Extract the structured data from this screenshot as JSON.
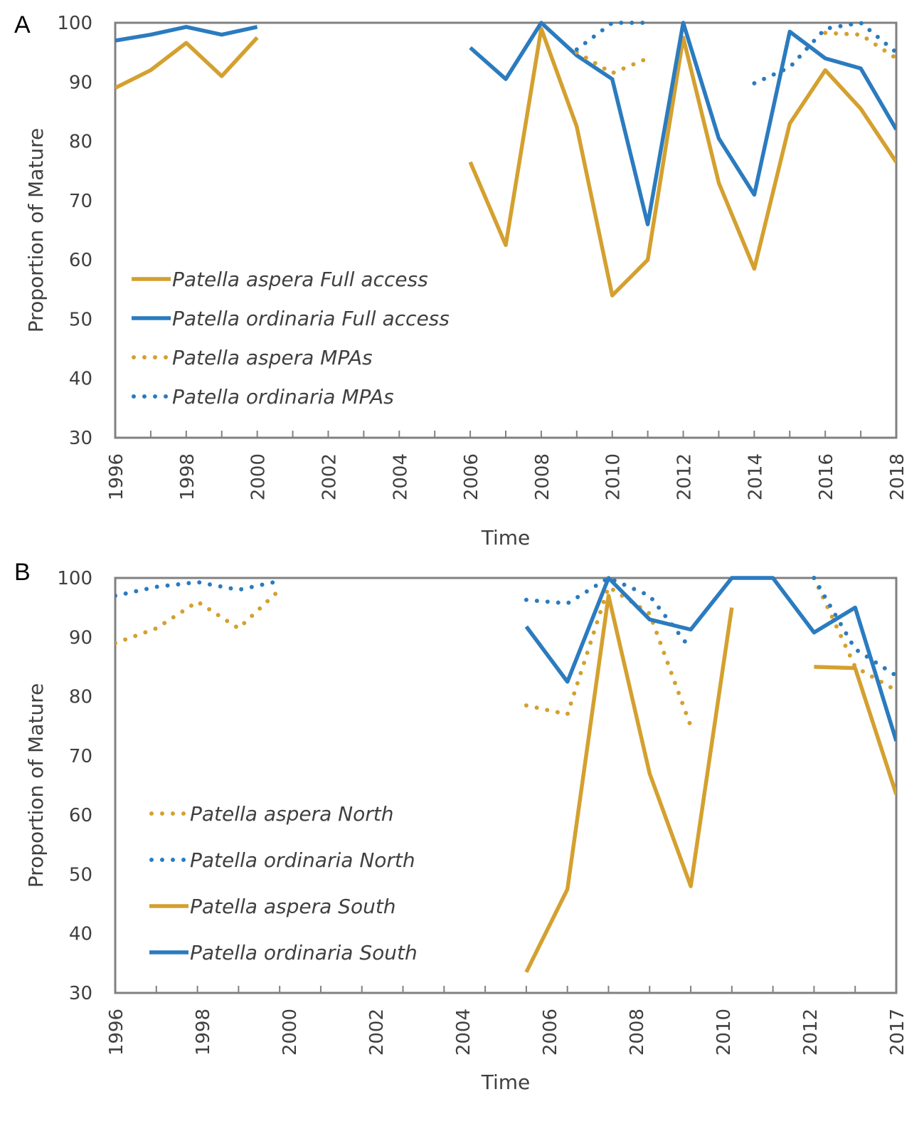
{
  "colors": {
    "aspera": "#D4A02F",
    "ordinaria": "#2B7BBF",
    "frame": "#808080",
    "text": "#404040"
  },
  "chart_data": [
    {
      "panel": "A",
      "type": "line",
      "title": "",
      "xlabel": "Time",
      "ylabel": "Proportion of Mature",
      "ylim": [
        30,
        100
      ],
      "xlim": [
        1996,
        2018
      ],
      "yticks": [
        "30",
        "40",
        "50",
        "60",
        "70",
        "80",
        "90",
        "100"
      ],
      "xticks": [
        "1996",
        "1998",
        "2000",
        "2002",
        "2004",
        "2006",
        "2008",
        "2010",
        "2012",
        "2014",
        "2016",
        "2018"
      ],
      "grid": false,
      "legend_position": "bottom-left",
      "series": [
        {
          "name": "Patella aspera Full access",
          "style": "solid",
          "species": "aspera",
          "x": [
            1996,
            1997,
            1998,
            1999,
            2000,
            null,
            2006,
            2007,
            2008,
            2009,
            2010,
            2011,
            2012,
            2013,
            2014,
            2015,
            2016,
            2017,
            2018
          ],
          "y": [
            89,
            92,
            96.6,
            91,
            97.5,
            null,
            76.5,
            62.5,
            99,
            82.5,
            54,
            60,
            97.5,
            73,
            58.5,
            83,
            92,
            85.5,
            76.5
          ]
        },
        {
          "name": "Patella ordinaria Full access",
          "style": "solid",
          "species": "ordinaria",
          "x": [
            1996,
            1997,
            1998,
            1999,
            2000,
            null,
            2006,
            2007,
            2008,
            2009,
            2010,
            2011,
            2012,
            2013,
            2014,
            2015,
            2016,
            2017,
            2018
          ],
          "y": [
            97,
            98,
            99.3,
            98,
            99.3,
            null,
            95.8,
            90.5,
            100,
            94.5,
            90.5,
            66,
            100,
            80.5,
            71,
            98.5,
            94,
            92.3,
            82
          ]
        },
        {
          "name": "Patella aspera MPAs",
          "style": "dotted",
          "species": "aspera",
          "x": [
            2009,
            2010,
            2011,
            null,
            2016,
            2017,
            2018
          ],
          "y": [
            95,
            91.5,
            94,
            null,
            98.3,
            98,
            94
          ]
        },
        {
          "name": "Patella ordinaria MPAs",
          "style": "dotted",
          "species": "ordinaria",
          "x": [
            2009,
            2010,
            2011,
            null,
            2014,
            2015,
            2016,
            2017,
            2018
          ],
          "y": [
            95.5,
            100,
            100,
            null,
            89.8,
            92.5,
            99,
            100,
            95
          ]
        }
      ]
    },
    {
      "panel": "B",
      "type": "line",
      "title": "",
      "xlabel": "Time",
      "ylabel": "Proportion of Mature",
      "ylim": [
        30,
        100
      ],
      "xlim": [
        1996,
        2015
      ],
      "yticks": [
        "30",
        "40",
        "50",
        "60",
        "70",
        "80",
        "90",
        "100"
      ],
      "xticks": [
        "1996",
        "1998",
        "2000",
        "2002",
        "2004",
        "2006",
        "2008",
        "2010",
        "2012",
        "2017"
      ],
      "grid": false,
      "legend_position": "bottom-left",
      "series": [
        {
          "name": "Patella aspera North",
          "style": "dotted",
          "species": "aspera",
          "x": [
            1996,
            1997,
            1998,
            1999,
            2000,
            null,
            2006,
            2007,
            2008,
            2009,
            2010,
            null,
            2013,
            2014,
            2015
          ],
          "y": [
            89,
            91.5,
            96,
            91.5,
            98,
            null,
            78.5,
            77,
            98.5,
            94,
            75,
            null,
            100,
            85,
            81
          ]
        },
        {
          "name": "Patella ordinaria North",
          "style": "dotted",
          "species": "ordinaria",
          "x": [
            1996,
            1997,
            1998,
            1999,
            2000,
            null,
            2006,
            2007,
            2008,
            2009,
            2010,
            null,
            2013,
            2014,
            2015
          ],
          "y": [
            97,
            98.5,
            99.3,
            98,
            99.5,
            null,
            96.3,
            95.7,
            100,
            97,
            88,
            null,
            100,
            88,
            83.5
          ]
        },
        {
          "name": "Patella aspera South",
          "style": "solid",
          "species": "aspera",
          "x": [
            2006,
            2007,
            2008,
            2009,
            2010,
            2011,
            null,
            2013,
            2014,
            2015
          ],
          "y": [
            33.5,
            47.5,
            97,
            67,
            48,
            95,
            null,
            85,
            84.8,
            63.5
          ]
        },
        {
          "name": "Patella ordinaria South",
          "style": "solid",
          "species": "ordinaria",
          "x": [
            2006,
            2007,
            2008,
            2009,
            2010,
            2011,
            2012,
            2013,
            2014,
            2015
          ],
          "y": [
            91.8,
            82.5,
            100,
            93,
            91.3,
            100,
            100,
            90.8,
            95,
            72.5
          ]
        }
      ]
    }
  ]
}
